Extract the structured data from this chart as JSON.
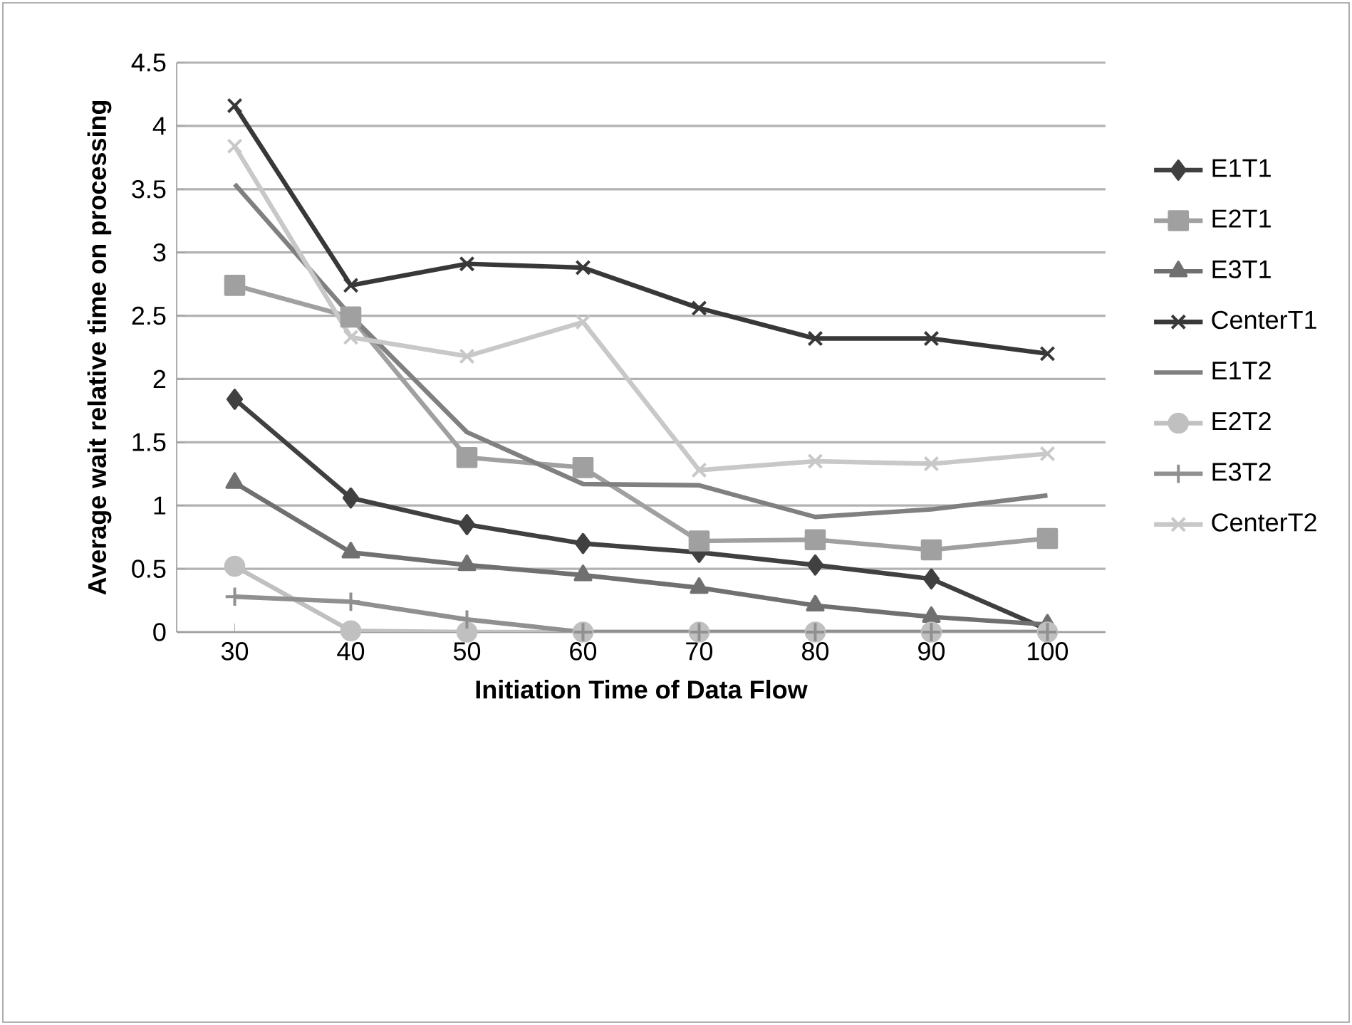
{
  "chart_data": {
    "type": "line",
    "xlabel": "Initiation Time of Data Flow",
    "ylabel": "Average wait relative time on processing",
    "categories": [
      "30",
      "40",
      "50",
      "60",
      "70",
      "80",
      "90",
      "100"
    ],
    "series": [
      {
        "name": "E1T1",
        "color": "#404040",
        "marker": "diamond",
        "values": [
          1.84,
          1.06,
          0.85,
          0.7,
          0.63,
          0.53,
          0.42,
          0.02
        ]
      },
      {
        "name": "E2T1",
        "color": "#a0a0a0",
        "marker": "square",
        "values": [
          2.74,
          2.49,
          1.38,
          1.3,
          0.72,
          0.73,
          0.65,
          0.74
        ]
      },
      {
        "name": "E3T1",
        "color": "#707070",
        "marker": "triangle",
        "values": [
          1.18,
          0.63,
          0.53,
          0.45,
          0.35,
          0.21,
          0.12,
          0.06
        ]
      },
      {
        "name": "CenterT1",
        "color": "#383838",
        "marker": "cross",
        "values": [
          4.16,
          2.74,
          2.91,
          2.88,
          2.56,
          2.32,
          2.32,
          2.2
        ]
      },
      {
        "name": "E1T2",
        "color": "#808080",
        "marker": "none",
        "values": [
          3.54,
          2.5,
          1.58,
          1.17,
          1.16,
          0.91,
          0.97,
          1.08
        ]
      },
      {
        "name": "E2T2",
        "color": "#c0c0c0",
        "marker": "circle",
        "values": [
          0.52,
          0.01,
          0,
          0,
          0,
          0,
          0,
          0
        ]
      },
      {
        "name": "E3T2",
        "color": "#909090",
        "marker": "plus",
        "values": [
          0.28,
          0.24,
          0.1,
          0,
          0,
          0,
          0,
          0
        ]
      },
      {
        "name": "CenterT2",
        "color": "#c8c8c8",
        "marker": "cross",
        "values": [
          3.84,
          2.33,
          2.18,
          2.45,
          1.28,
          1.35,
          1.33,
          1.41
        ]
      }
    ],
    "ylim": [
      0,
      4.5
    ],
    "yticks": [
      0,
      0.5,
      1,
      1.5,
      2,
      2.5,
      3,
      3.5,
      4,
      4.5
    ],
    "grid": "y",
    "legend": "right"
  }
}
